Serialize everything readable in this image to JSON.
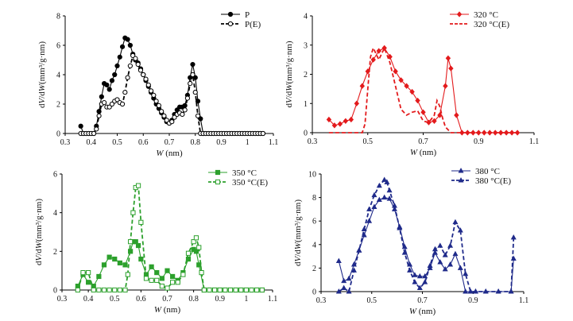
{
  "chart_data": [
    {
      "type": "line",
      "xlabel": "W (nm)",
      "ylabel": "dV/dW(mm³/g·nm)",
      "xlim": [
        0.3,
        1.1
      ],
      "ylim": [
        0,
        8
      ],
      "xticks": [
        "0.3",
        "0.4",
        "0.5",
        "0.6",
        "0.7",
        "0.8",
        "0.9",
        "1",
        "1.1"
      ],
      "yticks": [
        "0",
        "2",
        "4",
        "6",
        "8"
      ],
      "legend_position": "top-right",
      "series": [
        {
          "name": "P",
          "style": "solid",
          "marker": "filled-circle",
          "color": "#000000",
          "x": [
            0.36,
            0.37,
            0.38,
            0.39,
            0.4,
            0.41,
            0.42,
            0.43,
            0.44,
            0.45,
            0.46,
            0.47,
            0.48,
            0.49,
            0.5,
            0.51,
            0.52,
            0.53,
            0.54,
            0.55,
            0.56,
            0.57,
            0.58,
            0.59,
            0.6,
            0.61,
            0.62,
            0.63,
            0.64,
            0.65,
            0.66,
            0.67,
            0.68,
            0.69,
            0.7,
            0.71,
            0.72,
            0.73,
            0.74,
            0.75,
            0.76,
            0.77,
            0.78,
            0.79,
            0.8,
            0.81,
            0.82,
            0.83,
            0.84,
            0.85,
            0.86,
            0.87,
            0.88,
            0.89,
            0.9,
            0.91,
            0.92,
            0.93,
            0.94,
            0.95,
            0.96,
            0.97,
            0.98,
            0.99,
            1.0,
            1.01,
            1.02,
            1.03,
            1.04,
            1.05,
            1.06
          ],
          "y": [
            0.5,
            0.0,
            0.0,
            0.0,
            0.0,
            0.0,
            0.5,
            1.5,
            2.5,
            3.4,
            3.3,
            3.0,
            3.6,
            4.0,
            4.6,
            5.2,
            5.9,
            6.5,
            6.4,
            6.0,
            5.4,
            5.0,
            4.8,
            4.4,
            4.0,
            3.6,
            3.2,
            2.8,
            2.4,
            2.0,
            1.7,
            1.4,
            1.1,
            0.8,
            0.7,
            0.9,
            1.3,
            1.6,
            1.8,
            1.8,
            1.9,
            2.6,
            3.8,
            4.7,
            3.8,
            2.2,
            1.0,
            0.0,
            0.0,
            0.0,
            0.0,
            0.0,
            0.0,
            0.0,
            0.0,
            0.0,
            0.0,
            0.0,
            0.0,
            0.0,
            0.0,
            0.0,
            0.0,
            0.0,
            0.0,
            0.0,
            0.0,
            0.0,
            0.0,
            0.0,
            0.0
          ]
        },
        {
          "name": "P(E)",
          "style": "dashed",
          "marker": "open-circle",
          "color": "#000000",
          "x": [
            0.36,
            0.37,
            0.38,
            0.39,
            0.4,
            0.41,
            0.42,
            0.43,
            0.44,
            0.45,
            0.46,
            0.47,
            0.48,
            0.49,
            0.5,
            0.51,
            0.52,
            0.53,
            0.54,
            0.55,
            0.56,
            0.57,
            0.58,
            0.59,
            0.6,
            0.61,
            0.62,
            0.63,
            0.64,
            0.65,
            0.66,
            0.67,
            0.68,
            0.69,
            0.7,
            0.71,
            0.72,
            0.73,
            0.74,
            0.75,
            0.76,
            0.77,
            0.78,
            0.79,
            0.8,
            0.81,
            0.82,
            0.83,
            0.84,
            0.85,
            0.86,
            0.87,
            0.88,
            0.89,
            0.9,
            0.91,
            0.92,
            0.93,
            0.94,
            0.95,
            0.96,
            0.97,
            0.98,
            0.99,
            1.0,
            1.01,
            1.02,
            1.03,
            1.04,
            1.05,
            1.06
          ],
          "y": [
            0.0,
            0.0,
            0.0,
            0.0,
            0.0,
            0.0,
            0.3,
            1.2,
            2.0,
            2.1,
            1.8,
            1.8,
            2.0,
            2.2,
            2.3,
            2.1,
            2.0,
            2.8,
            3.8,
            4.6,
            5.3,
            5.1,
            4.7,
            4.3,
            4.0,
            3.7,
            3.3,
            2.9,
            2.6,
            2.2,
            1.9,
            1.5,
            1.2,
            0.9,
            0.7,
            0.8,
            1.1,
            1.3,
            1.4,
            1.3,
            1.6,
            2.4,
            3.4,
            4.0,
            2.8,
            1.2,
            0.0,
            0.0,
            0.0,
            0.0,
            0.0,
            0.0,
            0.0,
            0.0,
            0.0,
            0.0,
            0.0,
            0.0,
            0.0,
            0.0,
            0.0,
            0.0,
            0.0,
            0.0,
            0.0,
            0.0,
            0.0,
            0.0,
            0.0,
            0.0,
            0.0
          ]
        }
      ]
    },
    {
      "type": "line",
      "xlabel": "W (nm)",
      "ylabel": "dV/dW(mm³/g·nm)",
      "xlim": [
        0.3,
        1.1
      ],
      "ylim": [
        0,
        4
      ],
      "xticks": [
        "0.3",
        "0.5",
        "0.7",
        "0.9",
        "1.1"
      ],
      "yticks": [
        "0",
        "1",
        "2",
        "3",
        "4"
      ],
      "legend_position": "top-right",
      "series": [
        {
          "name": "320 °C",
          "style": "solid",
          "marker": "filled-diamond",
          "color": "#e31a1c",
          "x": [
            0.36,
            0.38,
            0.4,
            0.42,
            0.44,
            0.46,
            0.48,
            0.5,
            0.52,
            0.54,
            0.56,
            0.58,
            0.6,
            0.62,
            0.64,
            0.66,
            0.68,
            0.7,
            0.72,
            0.74,
            0.76,
            0.78,
            0.79,
            0.8,
            0.82,
            0.84,
            0.86,
            0.88,
            0.9,
            0.92,
            0.94,
            0.96,
            0.98,
            1.0,
            1.02,
            1.04
          ],
          "y": [
            0.45,
            0.25,
            0.3,
            0.4,
            0.45,
            1.0,
            1.6,
            2.1,
            2.5,
            2.8,
            2.9,
            2.6,
            2.1,
            1.8,
            1.6,
            1.4,
            1.1,
            0.7,
            0.35,
            0.4,
            0.6,
            1.6,
            2.55,
            2.2,
            0.6,
            0.0,
            0.0,
            0.0,
            0.0,
            0.0,
            0.0,
            0.0,
            0.0,
            0.0,
            0.0,
            0.0
          ]
        },
        {
          "name": "320 °C(E)",
          "style": "dashed",
          "marker": "none",
          "color": "#e31a1c",
          "x": [
            0.36,
            0.4,
            0.44,
            0.48,
            0.49,
            0.5,
            0.51,
            0.52,
            0.54,
            0.56,
            0.58,
            0.6,
            0.62,
            0.64,
            0.66,
            0.68,
            0.7,
            0.72,
            0.74,
            0.75,
            0.76,
            0.77,
            0.78,
            0.8,
            0.84,
            0.9,
            1.0,
            1.04
          ],
          "y": [
            0.0,
            0.0,
            0.0,
            0.0,
            0.3,
            1.5,
            2.6,
            2.9,
            2.5,
            2.9,
            2.4,
            1.6,
            0.8,
            0.6,
            0.7,
            0.75,
            0.4,
            0.35,
            0.6,
            1.1,
            0.9,
            0.5,
            0.2,
            0.0,
            0.0,
            0.0,
            0.0,
            0.0
          ]
        }
      ]
    },
    {
      "type": "line",
      "xlabel": "W (nm)",
      "ylabel": "dV/dW(mm³/g·nm)",
      "xlim": [
        0.3,
        1.1
      ],
      "ylim": [
        0,
        6
      ],
      "xticks": [
        "0.3",
        "0.4",
        "0.5",
        "0.6",
        "0.7",
        "0.8",
        "0.9",
        "1",
        "1.1"
      ],
      "yticks": [
        "0",
        "2",
        "4",
        "6"
      ],
      "legend_position": "top-right",
      "series": [
        {
          "name": "350 °C",
          "style": "solid",
          "marker": "filled-square",
          "color": "#2ca02c",
          "x": [
            0.36,
            0.38,
            0.4,
            0.42,
            0.44,
            0.46,
            0.48,
            0.5,
            0.52,
            0.54,
            0.56,
            0.57,
            0.58,
            0.59,
            0.6,
            0.62,
            0.64,
            0.66,
            0.68,
            0.7,
            0.72,
            0.74,
            0.76,
            0.78,
            0.8,
            0.81,
            0.82,
            0.84,
            0.86,
            0.88,
            0.9,
            0.92,
            0.94,
            0.96,
            0.98,
            1.0,
            1.02,
            1.04,
            1.06
          ],
          "y": [
            0.2,
            0.8,
            0.4,
            0.2,
            0.7,
            1.3,
            1.7,
            1.6,
            1.4,
            1.3,
            2.0,
            2.5,
            2.5,
            2.3,
            1.6,
            0.8,
            1.2,
            0.9,
            0.6,
            1.0,
            0.7,
            0.5,
            0.9,
            1.6,
            2.1,
            2.0,
            1.3,
            0.0,
            0.0,
            0.0,
            0.0,
            0.0,
            0.0,
            0.0,
            0.0,
            0.0,
            0.0,
            0.0,
            0.0
          ]
        },
        {
          "name": "350 °C(E)",
          "style": "dashed",
          "marker": "open-square",
          "color": "#2ca02c",
          "x": [
            0.36,
            0.38,
            0.4,
            0.42,
            0.44,
            0.46,
            0.48,
            0.5,
            0.52,
            0.54,
            0.55,
            0.56,
            0.57,
            0.58,
            0.59,
            0.6,
            0.62,
            0.64,
            0.66,
            0.68,
            0.7,
            0.72,
            0.74,
            0.76,
            0.78,
            0.8,
            0.81,
            0.82,
            0.83,
            0.84,
            0.86,
            0.88,
            0.9,
            0.92,
            0.94,
            0.96,
            0.98,
            1.0,
            1.02,
            1.04,
            1.06
          ],
          "y": [
            0.0,
            0.9,
            0.9,
            0.0,
            0.0,
            0.0,
            0.0,
            0.0,
            0.0,
            0.0,
            0.8,
            2.5,
            4.0,
            5.3,
            5.4,
            3.5,
            0.6,
            0.5,
            0.5,
            0.2,
            0.1,
            0.4,
            0.4,
            0.8,
            1.9,
            2.5,
            2.7,
            2.2,
            0.9,
            0.0,
            0.0,
            0.0,
            0.0,
            0.0,
            0.0,
            0.0,
            0.0,
            0.0,
            0.0,
            0.0,
            0.0
          ]
        }
      ]
    },
    {
      "type": "line",
      "xlabel": "W (nm)",
      "ylabel": "dV/dW(mm³/g·nm)",
      "xlim": [
        0.3,
        1.1
      ],
      "ylim": [
        0,
        10
      ],
      "xticks": [
        "0.3",
        "0.5",
        "0.7",
        "0.9",
        "1.1"
      ],
      "yticks": [
        "0",
        "2",
        "4",
        "6",
        "8",
        "10"
      ],
      "legend_position": "top-right",
      "series": [
        {
          "name": "380 °C",
          "style": "solid",
          "marker": "filled-triangle",
          "color": "#1f2a8a",
          "x": [
            0.37,
            0.39,
            0.41,
            0.43,
            0.45,
            0.47,
            0.49,
            0.51,
            0.53,
            0.55,
            0.57,
            0.59,
            0.61,
            0.63,
            0.65,
            0.67,
            0.69,
            0.71,
            0.73,
            0.75,
            0.77,
            0.79,
            0.81,
            0.83,
            0.85,
            0.87,
            0.89,
            0.91,
            0.95,
            1.0,
            1.05,
            1.06
          ],
          "y": [
            2.6,
            0.9,
            1.1,
            2.3,
            3.5,
            4.8,
            6.0,
            7.2,
            7.8,
            8.0,
            7.9,
            7.0,
            5.5,
            3.8,
            2.3,
            1.4,
            1.3,
            1.3,
            2.0,
            3.3,
            2.5,
            1.9,
            2.3,
            3.2,
            2.0,
            0.0,
            0.0,
            0.0,
            0.0,
            0.0,
            0.0,
            2.8
          ]
        },
        {
          "name": "380 °C(E)",
          "style": "dashed",
          "marker": "filled-triangle",
          "color": "#1f2a8a",
          "x": [
            0.37,
            0.39,
            0.41,
            0.43,
            0.45,
            0.47,
            0.49,
            0.51,
            0.53,
            0.55,
            0.56,
            0.57,
            0.59,
            0.61,
            0.63,
            0.65,
            0.67,
            0.69,
            0.71,
            0.73,
            0.75,
            0.77,
            0.79,
            0.81,
            0.83,
            0.85,
            0.87,
            0.89,
            0.91,
            0.95,
            1.0,
            1.05,
            1.06
          ],
          "y": [
            0.0,
            0.3,
            0.0,
            1.8,
            3.5,
            5.3,
            7.0,
            8.2,
            9.0,
            9.5,
            9.3,
            8.6,
            7.3,
            5.4,
            3.3,
            1.8,
            0.8,
            0.3,
            0.8,
            2.2,
            3.6,
            3.9,
            3.1,
            3.9,
            5.9,
            5.2,
            1.5,
            0.0,
            0.0,
            0.0,
            0.0,
            0.0,
            4.6
          ]
        }
      ]
    }
  ]
}
